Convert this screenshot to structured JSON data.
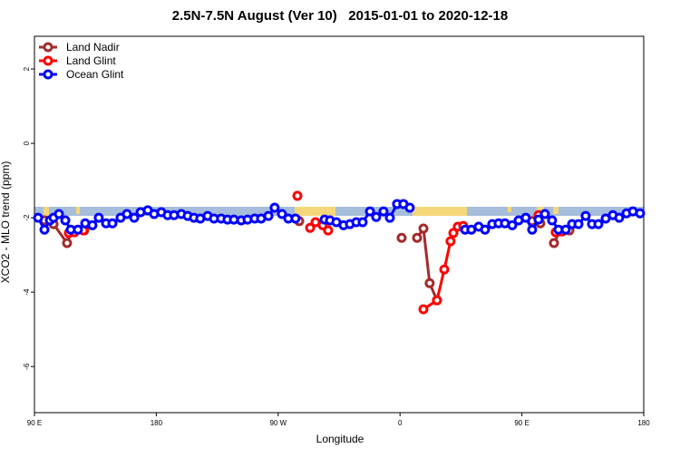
{
  "chart_data": {
    "type": "line",
    "title": "2.5N-7.5N August (Ver 10)   2015-01-01 to 2020-12-18",
    "x_label": "Longitude",
    "y_label": "XCO2 - MLO trend (ppm)",
    "xlim": [
      90,
      540
    ],
    "ylim": [
      -7.24,
      2.88
    ],
    "xticks": [
      {
        "value": 90,
        "label": "90 E"
      },
      180,
      {
        "value": 270,
        "label": "90 W"
      },
      {
        "value": 360,
        "label": "0"
      },
      {
        "value": 450,
        "label": "90 E"
      },
      {
        "value": 540,
        "label": "180"
      }
    ],
    "yticks": [
      2,
      0,
      -2,
      -4,
      -6
    ],
    "legend": "top-left",
    "series": [
      {
        "name": "Land Nadir",
        "color": "#a52a2a",
        "x": [
          97.4,
          104.1,
          114.1,
          117.5,
          null,
          126.8,
          null,
          285.5,
          null,
          361.2,
          null,
          372.6,
          377.3,
          381.9,
          387.3,
          null,
          457.6,
          463.6,
          null,
          473.7,
          478.4,
          485.1
        ],
        "values": [
          -2.07,
          -2.17,
          -2.68,
          -2.34,
          null,
          -2.34,
          null,
          -2.09,
          null,
          -2.54,
          null,
          -2.54,
          -2.29,
          -3.76,
          -4.22,
          null,
          -2.09,
          -2.15,
          null,
          -2.68,
          -2.34,
          -2.34
        ]
      },
      {
        "name": "Land Glint",
        "color": "#ff0000",
        "x": [
          115.4,
          119.5,
          126.2,
          null,
          284.2,
          null,
          293.6,
          297.6,
          302.9,
          306.9,
          null,
          377.3,
          387.3,
          392.7,
          397.3,
          399.4,
          402.7,
          406.7,
          null,
          462.3,
          null,
          475.0,
          479.7
        ],
        "values": [
          -2.41,
          -2.39,
          -2.34,
          null,
          -1.41,
          null,
          -2.27,
          -2.12,
          -2.2,
          -2.34,
          null,
          -4.46,
          -4.22,
          -3.39,
          -2.63,
          -2.41,
          -2.24,
          -2.22,
          null,
          -1.93,
          null,
          -2.39,
          -2.37
        ]
      },
      {
        "name": "Ocean Glint",
        "color": "#0000ff",
        "x": [
          92.7,
          97.4,
          101.4,
          104.1,
          108.1,
          112.8,
          116.8,
          122.1,
          127.5,
          132.8,
          137.5,
          142.9,
          147.6,
          153.6,
          158.3,
          163.7,
          168.4,
          173.7,
          178.4,
          183.7,
          188.4,
          193.1,
          198.5,
          203.2,
          207.8,
          212.5,
          217.9,
          222.6,
          227.9,
          232.6,
          237.3,
          242.7,
          247.4,
          252.7,
          257.4,
          262.8,
          267.4,
          272.8,
          277.5,
          282.8,
          null,
          304.3,
          308.3,
          313.0,
          318.3,
          323.0,
          327.7,
          332.4,
          337.8,
          342.4,
          347.8,
          352.5,
          357.8,
          362.5,
          367.2,
          null,
          408.1,
          412.7,
          418.1,
          422.8,
          428.1,
          432.8,
          437.5,
          442.9,
          447.6,
          452.9,
          457.6,
          462.3,
          467.0,
          472.3,
          477.0,
          482.4,
          487.1,
          491.8,
          497.1,
          501.8,
          506.5,
          511.9,
          517.2,
          521.9,
          527.3,
          532.0,
          537.3
        ],
        "values": [
          -2.0,
          -2.32,
          -2.07,
          -2.0,
          -1.9,
          -2.07,
          -2.32,
          -2.32,
          -2.15,
          -2.2,
          -2.0,
          -2.15,
          -2.15,
          -2.0,
          -1.9,
          -2.0,
          -1.85,
          -1.8,
          -1.9,
          -1.85,
          -1.93,
          -1.93,
          -1.9,
          -1.95,
          -2.0,
          -2.02,
          -1.95,
          -2.02,
          -2.02,
          -2.05,
          -2.05,
          -2.07,
          -2.05,
          -2.02,
          -2.02,
          -1.95,
          -1.73,
          -1.9,
          -2.02,
          -2.02,
          null,
          -2.05,
          -2.07,
          -2.12,
          -2.2,
          -2.17,
          -2.12,
          -2.12,
          -1.83,
          -1.98,
          -1.83,
          -2.0,
          -1.63,
          -1.63,
          -1.73,
          null,
          -2.32,
          -2.32,
          -2.24,
          -2.32,
          -2.17,
          -2.15,
          -2.15,
          -2.2,
          -2.07,
          -2.0,
          -2.32,
          -2.05,
          -1.9,
          -2.07,
          -2.32,
          -2.32,
          -2.17,
          -2.17,
          -1.95,
          -2.17,
          -2.17,
          -2.02,
          -1.93,
          -2.0,
          -1.88,
          -1.83,
          -1.88
        ]
      }
    ]
  }
}
